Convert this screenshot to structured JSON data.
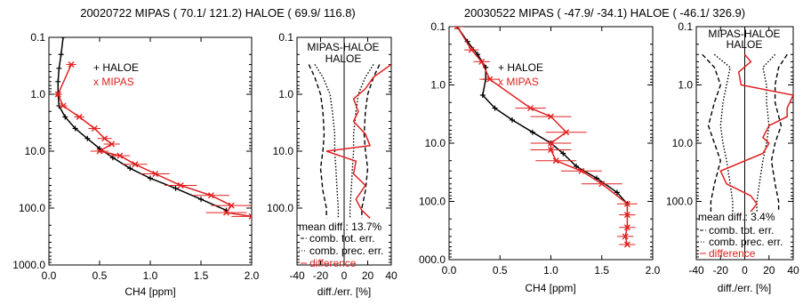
{
  "chart_data": [
    {
      "type": "line",
      "title": "20020722 MIPAS (  70.1/ 121.2)  HALOE (  69.9/ 116.8)",
      "profile": {
        "xlabel": "CH4 [ppm]",
        "xlim": [
          0.0,
          2.0
        ],
        "xticks": [
          "0.0",
          "0.5",
          "1.0",
          "1.5",
          "2.0"
        ],
        "ylim": [
          0.1,
          1000.0
        ],
        "yscale": "log-reversed",
        "yticks": [
          "0.1",
          "1.0",
          "10.0",
          "100.0",
          "1000.0"
        ],
        "legend": [
          "+ HALOE",
          "x MIPAS"
        ],
        "legend_colors": [
          "#000000",
          "#e02020"
        ],
        "series": [
          {
            "name": "HALOE",
            "color": "#000000",
            "x": [
              0.14,
              0.12,
              0.1,
              0.09,
              0.09,
              0.1,
              0.16,
              0.26,
              0.38,
              0.5,
              0.63,
              0.8,
              1.0,
              1.25,
              1.5,
              1.75
            ],
            "y": [
              0.1,
              0.2,
              0.35,
              0.6,
              1.0,
              1.6,
              2.5,
              4.0,
              6.0,
              9.0,
              13.0,
              20.0,
              30.0,
              45.0,
              70.0,
              110.0
            ]
          },
          {
            "name": "MIPAS",
            "color": "#e02020",
            "x": [
              0.22,
              0.09,
              0.14,
              0.3,
              0.45,
              0.55,
              0.62,
              0.5,
              0.7,
              0.85,
              1.05,
              1.3,
              1.6,
              1.8,
              1.75,
              2.0
            ],
            "y": [
              0.3,
              1.0,
              1.6,
              2.5,
              4.0,
              6.0,
              7.5,
              10.0,
              12.0,
              17.0,
              25.0,
              40.0,
              60.0,
              90.0,
              120.0,
              140.0
            ],
            "xerr": [
              0.05,
              0.04,
              0.04,
              0.05,
              0.06,
              0.07,
              0.08,
              0.09,
              0.1,
              0.12,
              0.14,
              0.16,
              0.18,
              0.2,
              0.2,
              0.2
            ]
          }
        ]
      },
      "difference": {
        "panel_title": [
          "MIPAS-HALOE",
          "HALOE"
        ],
        "xlabel": "diff./err. [%]",
        "xlim": [
          -40,
          40
        ],
        "xticks": [
          "-40",
          "-20",
          "0",
          "20",
          "40"
        ],
        "ylim": [
          0.1,
          1000.0
        ],
        "yticks": [
          "0.1",
          "1.0",
          "10.0",
          "100.0"
        ],
        "mean_diff_label": "mean diff.: 13.7%",
        "legend": [
          "comb. tot. err.",
          "comb. prec. err.",
          "difference"
        ],
        "legend_colors": [
          "#000000",
          "#000000",
          "#e02020"
        ],
        "tot_err": {
          "y": [
            0.3,
            0.5,
            1.0,
            2.0,
            5.0,
            10.0,
            20.0,
            50.0,
            100.0,
            150.0
          ],
          "minus": [
            -30,
            -25,
            -20,
            -18,
            -17,
            -18,
            -20,
            -18,
            -15,
            -15
          ],
          "plus": [
            30,
            25,
            20,
            18,
            17,
            18,
            20,
            18,
            15,
            15
          ]
        },
        "prec_err": {
          "y": [
            0.3,
            0.5,
            1.0,
            2.0,
            5.0,
            10.0,
            20.0,
            50.0,
            100.0,
            150.0
          ],
          "minus": [
            -25,
            -18,
            -12,
            -10,
            -8,
            -8,
            -7,
            -6,
            -5,
            -5
          ],
          "plus": [
            25,
            18,
            12,
            10,
            8,
            8,
            7,
            6,
            5,
            5
          ]
        },
        "diff": {
          "y": [
            0.3,
            0.5,
            0.8,
            1.2,
            2.0,
            3.0,
            5.0,
            8.0,
            10.0,
            15.0,
            25.0,
            40.0,
            70.0,
            110.0,
            150.0
          ],
          "x": [
            40,
            25,
            18,
            8,
            12,
            8,
            18,
            22,
            -15,
            10,
            8,
            18,
            10,
            15,
            22
          ]
        }
      }
    },
    {
      "type": "line",
      "title": "20030522 MIPAS ( -47.9/ -34.1)  HALOE ( -46.1/ 326.9)",
      "profile": {
        "xlabel": "CH4 [ppm]",
        "xlim": [
          0.0,
          2.0
        ],
        "xticks": [
          "0.0",
          "0.5",
          "1.0",
          "1.5",
          "2.0"
        ],
        "ylim": [
          0.1,
          1000.0
        ],
        "yscale": "log-reversed",
        "yticks": [
          "0.1",
          "1.0",
          "10.0",
          "100.0",
          "000.0"
        ],
        "legend": [
          "+ HALOE",
          "x MIPAS"
        ],
        "legend_colors": [
          "#000000",
          "#e02020"
        ],
        "series": [
          {
            "name": "HALOE",
            "color": "#000000",
            "x": [
              0.08,
              0.18,
              0.28,
              0.36,
              0.36,
              0.33,
              0.45,
              0.62,
              0.82,
              1.0,
              1.12,
              1.25,
              1.45,
              1.65,
              1.75
            ],
            "y": [
              0.1,
              0.18,
              0.3,
              0.5,
              0.8,
              1.5,
              2.5,
              4.0,
              6.5,
              10.0,
              15.0,
              25.0,
              40.0,
              70.0,
              110.0
            ]
          },
          {
            "name": "MIPAS",
            "color": "#e02020",
            "x": [
              0.08,
              0.22,
              0.32,
              0.4,
              0.8,
              1.0,
              1.15,
              1.0,
              1.0,
              1.05,
              1.3,
              1.5,
              1.75,
              1.75,
              1.75,
              1.73,
              1.75
            ],
            "y": [
              0.1,
              0.25,
              0.4,
              0.8,
              2.5,
              3.5,
              6.5,
              10.0,
              13.0,
              20.0,
              30.0,
              50.0,
              110.0,
              170.0,
              280.0,
              400.0,
              550.0
            ],
            "xerr": [
              0.06,
              0.07,
              0.08,
              0.1,
              0.15,
              0.2,
              0.2,
              0.2,
              0.2,
              0.2,
              0.2,
              0.2,
              0.1,
              0.08,
              0.08,
              0.08,
              0.08
            ]
          }
        ]
      },
      "difference": {
        "panel_title": [
          "MIPAS-HALOE",
          "HALOE"
        ],
        "xlabel": "diff./err. [%]",
        "xlim": [
          -40,
          40
        ],
        "xticks": [
          "-40",
          "-20",
          "0",
          "20",
          "40"
        ],
        "ylim": [
          0.1,
          1000.0
        ],
        "yticks": [
          "0.1",
          "1.0",
          "10.0",
          "100.0"
        ],
        "mean_diff_label": "mean diff.: 3.4%",
        "legend": [
          "comb. tot. err.",
          "comb. prec. err.",
          "difference"
        ],
        "legend_colors": [
          "#000000",
          "#000000",
          "#e02020"
        ],
        "tot_err": {
          "y": [
            0.3,
            0.5,
            1.0,
            2.0,
            5.0,
            10.0,
            20.0,
            50.0,
            100.0,
            150.0
          ],
          "minus": [
            -35,
            -25,
            -20,
            -25,
            -30,
            -25,
            -20,
            -25,
            -28,
            -28
          ],
          "plus": [
            35,
            28,
            25,
            25,
            30,
            25,
            22,
            25,
            28,
            28
          ]
        },
        "prec_err": {
          "y": [
            0.3,
            0.5,
            1.0,
            2.0,
            5.0,
            10.0,
            20.0,
            50.0,
            100.0,
            150.0
          ],
          "minus": [
            -25,
            -12,
            -15,
            -18,
            -20,
            -18,
            -15,
            -12,
            -10,
            -10
          ],
          "plus": [
            25,
            15,
            18,
            18,
            20,
            18,
            15,
            12,
            10,
            10
          ]
        },
        "diff": {
          "y": [
            0.3,
            0.4,
            0.6,
            1.0,
            1.5,
            2.5,
            3.5,
            5.0,
            8.0,
            10.0,
            15.0,
            30.0,
            50.0,
            80.0,
            110.0,
            150.0
          ],
          "x": [
            0,
            5,
            -5,
            -3,
            40,
            35,
            35,
            20,
            15,
            20,
            15,
            -20,
            -15,
            5,
            10,
            5
          ]
        }
      }
    }
  ]
}
